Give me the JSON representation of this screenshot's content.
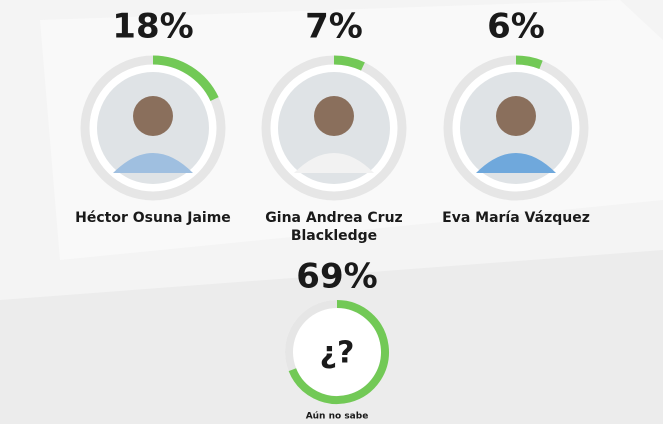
{
  "chart_data": {
    "type": "donut",
    "categories": [
      "Héctor Osuna Jaime",
      "Gina Andrea Cruz Blackledge",
      "Eva María Vázquez",
      "Aún no sabe"
    ],
    "values": [
      18,
      7,
      6,
      69
    ],
    "value_labels": [
      "18%",
      "7%",
      "6%",
      "69%"
    ],
    "center_labels": [
      null,
      null,
      null,
      "¿?"
    ],
    "color": "#72c956",
    "track_color": "#e6e6e6",
    "ylim": [
      0,
      100
    ]
  }
}
